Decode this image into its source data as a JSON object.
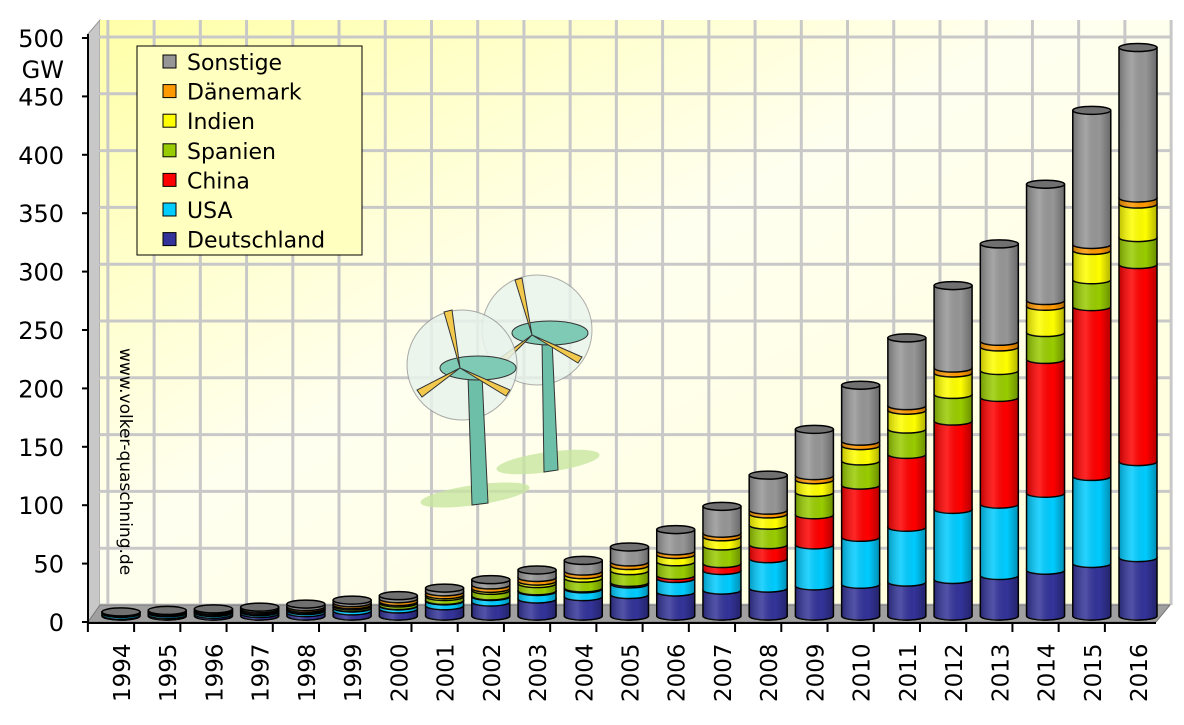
{
  "chart_data": {
    "type": "bar",
    "stacked": true,
    "title": "",
    "xlabel": "",
    "ylabel": "GW",
    "ylim": [
      0,
      500
    ],
    "yticks": [
      0,
      50,
      100,
      150,
      200,
      250,
      300,
      350,
      400,
      450,
      500
    ],
    "grid": true,
    "legend_position": "top-left",
    "watermark": "www.volker-quaschning.de",
    "categories": [
      "1994",
      "1995",
      "1996",
      "1997",
      "1998",
      "1999",
      "2000",
      "2001",
      "2002",
      "2003",
      "2004",
      "2005",
      "2006",
      "2007",
      "2008",
      "2009",
      "2010",
      "2011",
      "2012",
      "2013",
      "2014",
      "2015",
      "2016"
    ],
    "series": [
      {
        "name": "Deutschland",
        "color": "#333399",
        "values": [
          0.6,
          1.1,
          1.5,
          2.1,
          2.9,
          4.4,
          6.1,
          8.8,
          12.0,
          14.6,
          16.6,
          18.4,
          20.6,
          22.2,
          23.9,
          25.8,
          27.2,
          29.1,
          31.3,
          34.7,
          39.2,
          45.0,
          50.0
        ]
      },
      {
        "name": "USA",
        "color": "#00ccff",
        "values": [
          1.7,
          1.6,
          1.6,
          1.6,
          1.8,
          2.5,
          2.6,
          4.2,
          4.7,
          6.4,
          6.7,
          9.1,
          11.6,
          16.8,
          25.2,
          35.1,
          40.2,
          46.9,
          60.0,
          61.1,
          65.9,
          74.5,
          82.2
        ]
      },
      {
        "name": "China",
        "color": "#ff0000",
        "values": [
          0.0,
          0.0,
          0.1,
          0.1,
          0.2,
          0.3,
          0.3,
          0.4,
          0.5,
          0.6,
          0.8,
          1.3,
          2.6,
          5.9,
          12.0,
          25.8,
          44.7,
          62.4,
          75.6,
          91.4,
          114.6,
          145.4,
          168.7
        ]
      },
      {
        "name": "Spanien",
        "color": "#99cc00",
        "values": [
          0.1,
          0.1,
          0.2,
          0.5,
          0.8,
          1.5,
          2.2,
          3.3,
          4.8,
          6.2,
          8.3,
          10.0,
          11.6,
          15.1,
          16.7,
          19.1,
          20.7,
          21.7,
          22.8,
          23.0,
          23.0,
          23.0,
          23.1
        ]
      },
      {
        "name": "Indien",
        "color": "#ffff00",
        "values": [
          0.2,
          0.6,
          0.8,
          0.9,
          1.0,
          1.0,
          1.2,
          1.5,
          1.7,
          2.1,
          3.0,
          4.4,
          6.3,
          7.8,
          9.6,
          10.9,
          13.1,
          16.1,
          18.4,
          20.2,
          22.5,
          25.1,
          28.7
        ]
      },
      {
        "name": "Dänemark",
        "color": "#ff9900",
        "values": [
          0.5,
          0.6,
          0.8,
          1.1,
          1.4,
          1.7,
          2.4,
          2.5,
          2.9,
          3.1,
          3.1,
          3.1,
          3.1,
          3.1,
          3.2,
          3.5,
          3.8,
          3.9,
          4.2,
          4.8,
          4.9,
          5.1,
          5.2
        ]
      },
      {
        "name": "Sonstige",
        "color": "#969696",
        "values": [
          0.4,
          0.8,
          1.1,
          1.3,
          2.1,
          2.2,
          2.6,
          3.2,
          4.5,
          6.4,
          9.1,
          12.8,
          18.2,
          23.0,
          30.0,
          39.6,
          47.9,
          58.0,
          70.6,
          83.4,
          99.6,
          114.8,
          128.8
        ]
      }
    ]
  }
}
